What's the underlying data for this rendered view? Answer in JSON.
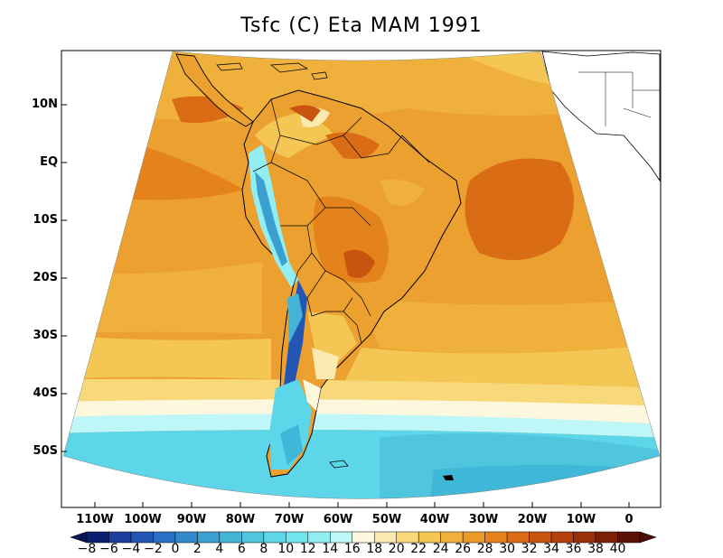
{
  "title": "Tsfc (C) Eta MAM 1991",
  "lat_labels": [
    "10N",
    "EQ",
    "10S",
    "20S",
    "30S",
    "40S",
    "50S"
  ],
  "lon_labels": [
    "110W",
    "100W",
    "90W",
    "80W",
    "70W",
    "60W",
    "50W",
    "40W",
    "30W",
    "20W",
    "10W",
    "0"
  ],
  "colorbar": {
    "labels": [
      "-8",
      "-6",
      "-4",
      "-2",
      "0",
      "2",
      "4",
      "6",
      "8",
      "10",
      "12",
      "14",
      "16",
      "18",
      "20",
      "22",
      "24",
      "26",
      "28",
      "30",
      "32",
      "34",
      "36",
      "38",
      "40"
    ],
    "colors": [
      "#0a1f6e",
      "#1d3c9c",
      "#2356b4",
      "#2a6fc3",
      "#3388c9",
      "#3b9fcf",
      "#44b3d6",
      "#4fc6de",
      "#5cd6e8",
      "#72e4ee",
      "#93eef3",
      "#bff6f8",
      "#fdf7dd",
      "#fbeab0",
      "#f8d97a",
      "#f4c653",
      "#f0b13c",
      "#eb9a28",
      "#e4831c",
      "#d96c14",
      "#c9540f",
      "#b4410c",
      "#9a300a",
      "#7e2008",
      "#5c1206"
    ]
  },
  "map_colors": {
    "ocean_warm": "#eba030",
    "ocean_hot": "#e07a1a",
    "ocean_mid": "#f4c653",
    "ocean_cool": "#f8e2a0",
    "cold_1": "#bff6f8",
    "cold_2": "#5cd6e8",
    "cold_3": "#3fb7d8",
    "land": "#e9a34a"
  }
}
